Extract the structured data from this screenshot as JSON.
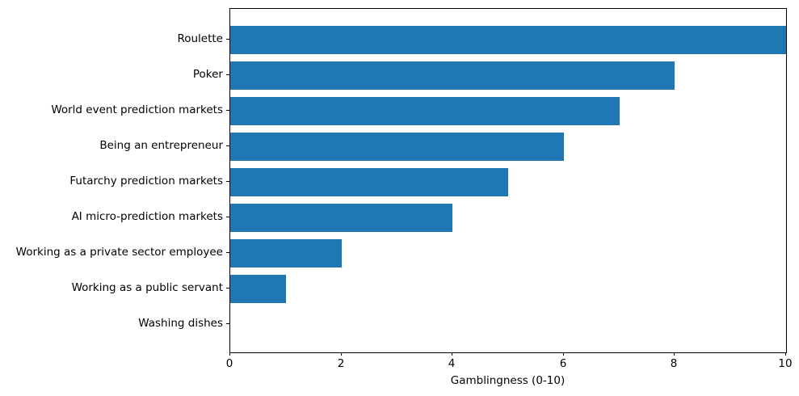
{
  "chart_data": {
    "type": "bar",
    "orientation": "horizontal",
    "title": "",
    "xlabel": "Gamblingness (0-10)",
    "ylabel": "",
    "categories": [
      "Roulette",
      "Poker",
      "World event prediction markets",
      "Being an entrepreneur",
      "Futarchy prediction markets",
      "AI micro-prediction markets",
      "Working as a private sector employee",
      "Working as a public servant",
      "Washing dishes"
    ],
    "values": [
      10,
      8,
      7,
      6,
      5,
      4,
      2,
      1,
      0
    ],
    "xlim": [
      0,
      10
    ],
    "xticks": [
      0,
      2,
      4,
      6,
      8,
      10
    ],
    "xtick_labels": [
      "0",
      "2",
      "4",
      "6",
      "8",
      "10"
    ],
    "grid": false,
    "legend": null,
    "colors": {
      "bar": "#1f77b4",
      "spine": "#000000",
      "text": "#000000",
      "background": "#ffffff"
    }
  }
}
